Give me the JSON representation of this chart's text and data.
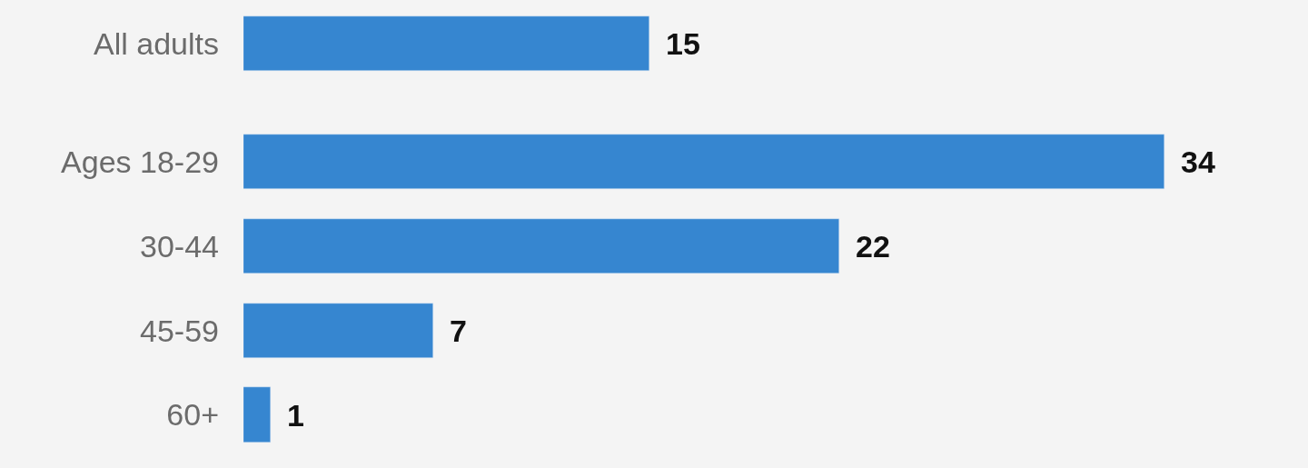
{
  "chart_data": {
    "type": "bar",
    "orientation": "horizontal",
    "categories": [
      "All adults",
      "Ages 18-29",
      "30-44",
      "45-59",
      "60+"
    ],
    "values": [
      15,
      34,
      22,
      7,
      1
    ],
    "color": "#3686d0",
    "data_labels": true,
    "xlim": [
      0,
      39.3
    ],
    "tick_labels": "y",
    "grid": false,
    "legend": false
  }
}
